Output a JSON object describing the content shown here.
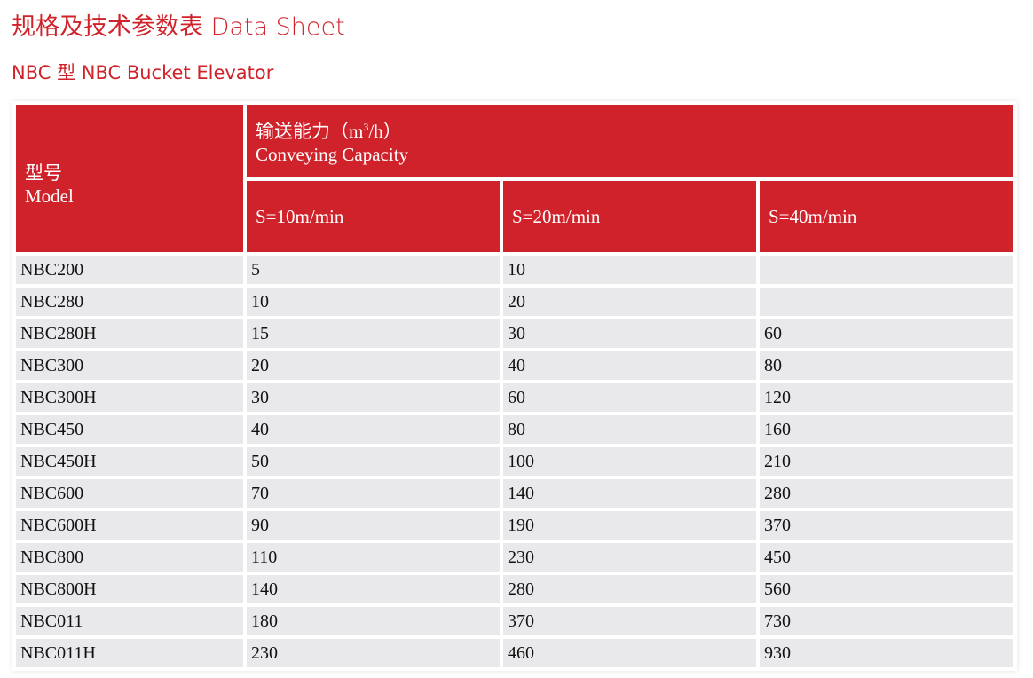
{
  "title": "规格及技术参数表 Data Sheet",
  "subtitle": "NBC 型 NBC Bucket Elevator",
  "colors": {
    "accent": "#d0222a",
    "row_bg": "#e9e9ec"
  },
  "table": {
    "model_header_cn": "型号",
    "model_header_en": "Model",
    "capacity_header_cn": "输送能力（m",
    "capacity_header_sup": "3",
    "capacity_header_unit": "/h）",
    "capacity_header_en": "Conveying Capacity",
    "speed_headers": [
      "S=10m/min",
      "S=20m/min",
      "S=40m/min"
    ],
    "rows": [
      [
        "NBC200",
        "5",
        "10",
        ""
      ],
      [
        "NBC280",
        "10",
        "20",
        ""
      ],
      [
        "NBC280H",
        "15",
        "30",
        "60"
      ],
      [
        "NBC300",
        "20",
        "40",
        "80"
      ],
      [
        "NBC300H",
        "30",
        "60",
        "120"
      ],
      [
        "NBC450",
        "40",
        "80",
        "160"
      ],
      [
        "NBC450H",
        "50",
        "100",
        "210"
      ],
      [
        "NBC600",
        "70",
        "140",
        "280"
      ],
      [
        "NBC600H",
        "90",
        "190",
        "370"
      ],
      [
        "NBC800",
        "110",
        "230",
        "450"
      ],
      [
        "NBC800H",
        "140",
        "280",
        "560"
      ],
      [
        "NBC011",
        "180",
        "370",
        "730"
      ],
      [
        "NBC011H",
        "230",
        "460",
        "930"
      ]
    ]
  }
}
